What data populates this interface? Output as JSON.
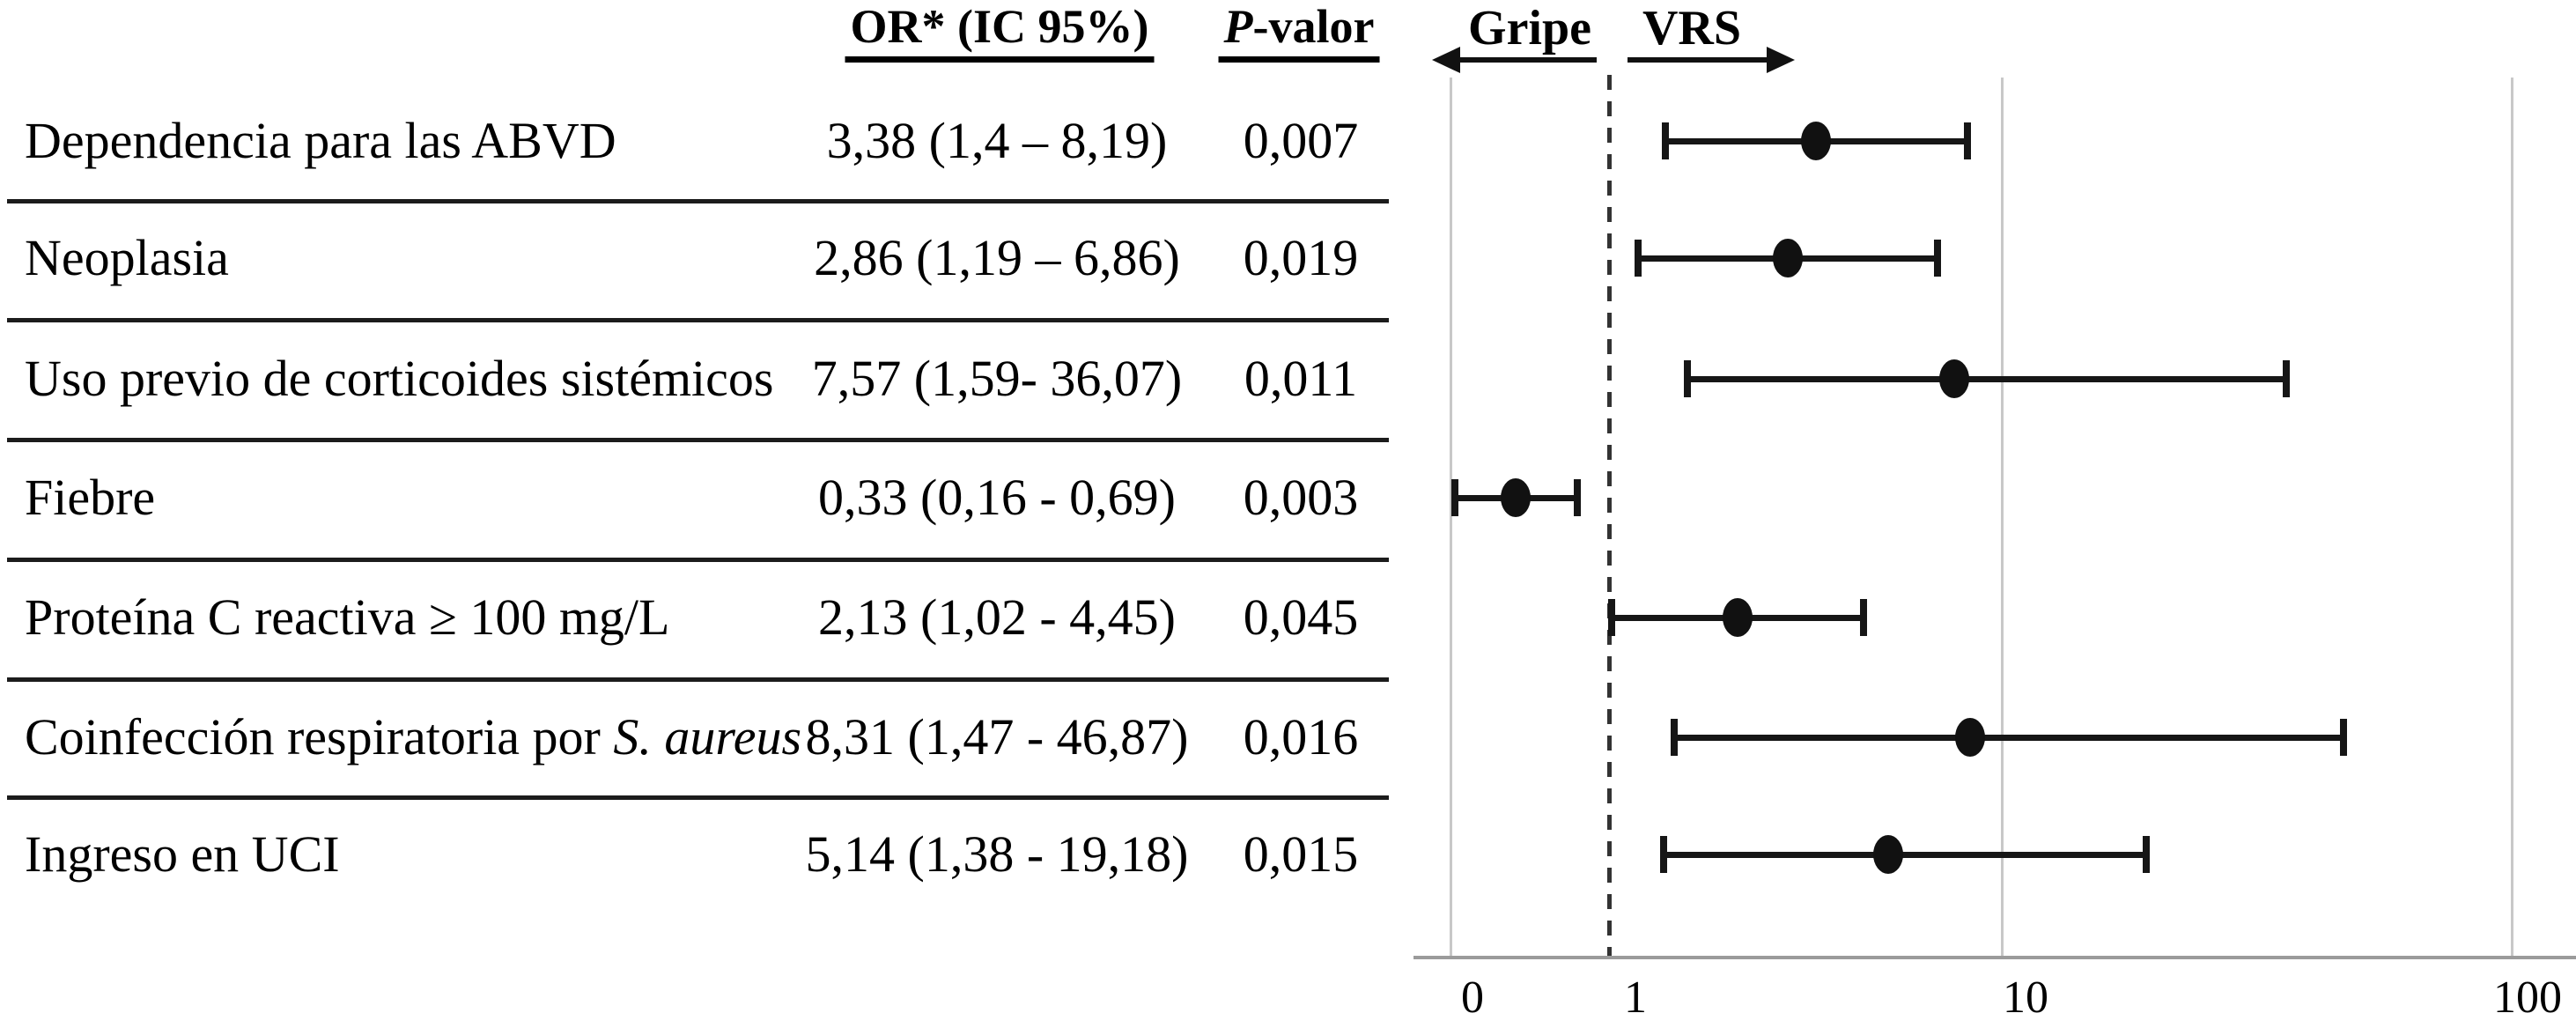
{
  "table": {
    "headers": {
      "or_label": "OR* (IC 95%)",
      "p_prefix": "P",
      "p_suffix": "-valor"
    },
    "rows": [
      {
        "label": "Dependencia para las ABVD",
        "label_italic": "",
        "or_ci": "3,38 (1,4 – 8,19)",
        "p": "0,007"
      },
      {
        "label": "Neoplasia",
        "label_italic": "",
        "or_ci": "2,86 (1,19 – 6,86)",
        "p": "0,019"
      },
      {
        "label": "Uso previo de corticoides sistémicos",
        "label_italic": "",
        "or_ci": "7,57 (1,59- 36,07)",
        "p": "0,011"
      },
      {
        "label": "Fiebre",
        "label_italic": "",
        "or_ci": "0,33 (0,16 - 0,69)",
        "p": "0,003"
      },
      {
        "label": "Proteína C reactiva ≥ 100 mg/L",
        "label_italic": "",
        "or_ci": "2,13 (1,02 - 4,45)",
        "p": "0,045"
      },
      {
        "label": "Coinfección respiratoria por ",
        "label_italic": "S. aureus",
        "or_ci": "8,31 (1,47 - 46,87)",
        "p": "0,016"
      },
      {
        "label": "Ingreso en UCI",
        "label_italic": "",
        "or_ci": "5,14 (1,38 - 19,18)",
        "p": "0,015"
      }
    ]
  },
  "plot": {
    "left_region_label": "Gripe",
    "right_region_label": "VRS",
    "tick_labels": [
      "0",
      "1",
      "10",
      "100"
    ]
  },
  "chart_data": {
    "type": "forest",
    "x_scale": "log",
    "x_axis_tick_values": [
      0,
      1,
      10,
      100
    ],
    "reference_line": 1,
    "left_direction_label": "Gripe",
    "right_direction_label": "VRS",
    "or_column_header": "OR* (IC 95%)",
    "p_column_header": "P-valor",
    "rows": [
      {
        "label": "Dependencia para las ABVD",
        "or": 3.38,
        "ci_low": 1.4,
        "ci_high": 8.19,
        "p_value": "0,007"
      },
      {
        "label": "Neoplasia",
        "or": 2.86,
        "ci_low": 1.19,
        "ci_high": 6.86,
        "p_value": "0,019"
      },
      {
        "label": "Uso previo de corticoides sistémicos",
        "or": 7.57,
        "ci_low": 1.59,
        "ci_high": 36.07,
        "p_value": "0,011"
      },
      {
        "label": "Fiebre",
        "or": 0.33,
        "ci_low": 0.16,
        "ci_high": 0.69,
        "p_value": "0,003"
      },
      {
        "label": "Proteína C reactiva ≥ 100 mg/L",
        "or": 2.13,
        "ci_low": 1.02,
        "ci_high": 4.45,
        "p_value": "0,045"
      },
      {
        "label": "Coinfección respiratoria por S. aureus",
        "or": 8.31,
        "ci_low": 1.47,
        "ci_high": 46.87,
        "p_value": "0,016"
      },
      {
        "label": "Ingreso en UCI",
        "or": 5.14,
        "ci_low": 1.38,
        "ci_high": 19.18,
        "p_value": "0,015"
      }
    ]
  },
  "colors": {
    "marker": "#111111",
    "gridline": "#c8c8c8",
    "axis": "#9b9b9b",
    "reference_dashed": "#333333",
    "text": "#000000"
  }
}
